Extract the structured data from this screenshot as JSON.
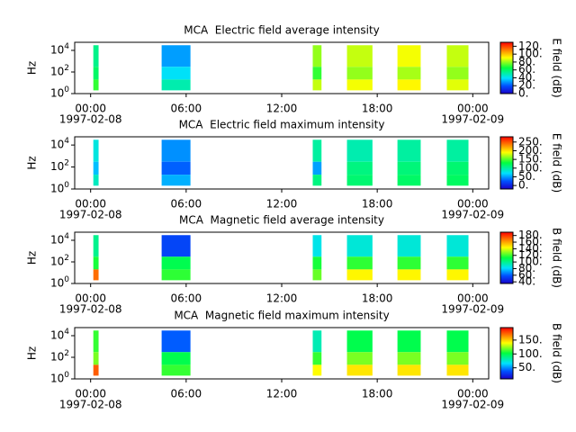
{
  "chart_data": [
    {
      "type": "heatmap",
      "title": "MCA  Electric field average intensity",
      "ylabel": "Hz",
      "colorbar_label": "E field (dB)",
      "xlim": [
        -1,
        25
      ],
      "xticks": [
        {
          "value": 0,
          "label": "00:00"
        },
        {
          "value": 6,
          "label": "06:00"
        },
        {
          "value": 12,
          "label": "12:00"
        },
        {
          "value": 18,
          "label": "18:00"
        },
        {
          "value": 24,
          "label": "00:00"
        }
      ],
      "x_dates": [
        {
          "value": 0,
          "label": "1997-02-08"
        },
        {
          "value": 24,
          "label": "1997-02-09"
        }
      ],
      "log_y": true,
      "ylim": [
        1,
        56000
      ],
      "yticks": [
        {
          "value": 1,
          "label": "10^0"
        },
        {
          "value": 100,
          "label": "10^2"
        },
        {
          "value": 10000,
          "label": "10^4"
        }
      ],
      "clim": [
        0,
        130
      ],
      "cticks": [
        {
          "value": 0,
          "label": "0."
        },
        {
          "value": 20,
          "label": "20."
        },
        {
          "value": 40,
          "label": "40."
        },
        {
          "value": 60,
          "label": "60."
        },
        {
          "value": 80,
          "label": "80."
        },
        {
          "value": 100,
          "label": "100."
        },
        {
          "value": 120,
          "label": "120."
        }
      ],
      "blocks": [
        {
          "t": [
            0.17,
            0.5
          ],
          "bands": [
            {
              "f": [
                300,
                30000
              ],
              "value": 55
            },
            {
              "f": [
                20,
                300
              ],
              "value": 60
            },
            {
              "f": [
                2,
                20
              ],
              "value": 70
            }
          ]
        },
        {
          "t": [
            4.46,
            6.27
          ],
          "bands": [
            {
              "f": [
                300,
                30000
              ],
              "value": 30
            },
            {
              "f": [
                20,
                300
              ],
              "value": 40
            },
            {
              "f": [
                2,
                20
              ],
              "value": 50
            }
          ]
        },
        {
          "t": [
            13.95,
            14.5
          ],
          "bands": [
            {
              "f": [
                300,
                30000
              ],
              "value": 80
            },
            {
              "f": [
                20,
                300
              ],
              "value": 70
            },
            {
              "f": [
                2,
                20
              ],
              "value": 85
            }
          ]
        },
        {
          "t": [
            16.1,
            17.7
          ],
          "bands": [
            {
              "f": [
                300,
                30000
              ],
              "value": 85
            },
            {
              "f": [
                20,
                300
              ],
              "value": 80
            },
            {
              "f": [
                2,
                20
              ],
              "value": 90
            }
          ]
        },
        {
          "t": [
            19.27,
            20.73
          ],
          "bands": [
            {
              "f": [
                300,
                30000
              ],
              "value": 90
            },
            {
              "f": [
                20,
                300
              ],
              "value": 82
            },
            {
              "f": [
                2,
                20
              ],
              "value": 92
            }
          ]
        },
        {
          "t": [
            22.37,
            23.73
          ],
          "bands": [
            {
              "f": [
                300,
                30000
              ],
              "value": 85
            },
            {
              "f": [
                20,
                300
              ],
              "value": 80
            },
            {
              "f": [
                2,
                20
              ],
              "value": 88
            }
          ]
        }
      ]
    },
    {
      "type": "heatmap",
      "title": "MCA  Electric field maximum intensity",
      "ylabel": "Hz",
      "colorbar_label": "E field (dB)",
      "xlim": [
        -1,
        25
      ],
      "xticks": [
        {
          "value": 0,
          "label": "00:00"
        },
        {
          "value": 6,
          "label": "06:00"
        },
        {
          "value": 12,
          "label": "12:00"
        },
        {
          "value": 18,
          "label": "18:00"
        },
        {
          "value": 24,
          "label": "00:00"
        }
      ],
      "x_dates": [
        {
          "value": 0,
          "label": "1997-02-08"
        },
        {
          "value": 24,
          "label": "1997-02-09"
        }
      ],
      "log_y": true,
      "ylim": [
        1,
        56000
      ],
      "yticks": [
        {
          "value": 1,
          "label": "10^0"
        },
        {
          "value": 100,
          "label": "10^2"
        },
        {
          "value": 10000,
          "label": "10^4"
        }
      ],
      "clim": [
        -20,
        280
      ],
      "cticks": [
        {
          "value": 0,
          "label": "0."
        },
        {
          "value": 50,
          "label": "50."
        },
        {
          "value": 100,
          "label": "100."
        },
        {
          "value": 150,
          "label": "150."
        },
        {
          "value": 200,
          "label": "200."
        },
        {
          "value": 250,
          "label": "250."
        }
      ],
      "blocks": [
        {
          "t": [
            0.17,
            0.5
          ],
          "bands": [
            {
              "f": [
                300,
                30000
              ],
              "value": 80
            },
            {
              "f": [
                20,
                300
              ],
              "value": 60
            },
            {
              "f": [
                2,
                20
              ],
              "value": 90
            }
          ]
        },
        {
          "t": [
            4.46,
            6.27
          ],
          "bands": [
            {
              "f": [
                300,
                30000
              ],
              "value": 45
            },
            {
              "f": [
                20,
                300
              ],
              "value": 30
            },
            {
              "f": [
                2,
                20
              ],
              "value": 55
            }
          ]
        },
        {
          "t": [
            13.95,
            14.5
          ],
          "bands": [
            {
              "f": [
                300,
                30000
              ],
              "value": 100
            },
            {
              "f": [
                20,
                300
              ],
              "value": 50
            },
            {
              "f": [
                2,
                20
              ],
              "value": 110
            }
          ]
        },
        {
          "t": [
            16.1,
            17.7
          ],
          "bands": [
            {
              "f": [
                300,
                30000
              ],
              "value": 95
            },
            {
              "f": [
                20,
                300
              ],
              "value": 110
            },
            {
              "f": [
                2,
                20
              ],
              "value": 115
            }
          ]
        },
        {
          "t": [
            19.27,
            20.73
          ],
          "bands": [
            {
              "f": [
                300,
                30000
              ],
              "value": 100
            },
            {
              "f": [
                20,
                300
              ],
              "value": 112
            },
            {
              "f": [
                2,
                20
              ],
              "value": 118
            }
          ]
        },
        {
          "t": [
            22.37,
            23.73
          ],
          "bands": [
            {
              "f": [
                300,
                30000
              ],
              "value": 100
            },
            {
              "f": [
                20,
                300
              ],
              "value": 115
            },
            {
              "f": [
                2,
                20
              ],
              "value": 120
            }
          ]
        }
      ]
    },
    {
      "type": "heatmap",
      "title": "MCA  Magnetic field average intensity",
      "ylabel": "Hz",
      "colorbar_label": "B field (dB)",
      "xlim": [
        -1,
        25
      ],
      "xticks": [
        {
          "value": 0,
          "label": "00:00"
        },
        {
          "value": 6,
          "label": "06:00"
        },
        {
          "value": 12,
          "label": "12:00"
        },
        {
          "value": 18,
          "label": "18:00"
        },
        {
          "value": 24,
          "label": "00:00"
        }
      ],
      "x_dates": [
        {
          "value": 0,
          "label": "1997-02-08"
        },
        {
          "value": 24,
          "label": "1997-02-09"
        }
      ],
      "log_y": true,
      "ylim": [
        1,
        56000
      ],
      "yticks": [
        {
          "value": 1,
          "label": "10^0"
        },
        {
          "value": 100,
          "label": "10^2"
        },
        {
          "value": 10000,
          "label": "10^4"
        }
      ],
      "clim": [
        35,
        190
      ],
      "cticks": [
        {
          "value": 40,
          "label": "40."
        },
        {
          "value": 60,
          "label": "60."
        },
        {
          "value": 80,
          "label": "80."
        },
        {
          "value": 100,
          "label": "100."
        },
        {
          "value": 120,
          "label": "120."
        },
        {
          "value": 140,
          "label": "140."
        },
        {
          "value": 160,
          "label": "160."
        },
        {
          "value": 180,
          "label": "180."
        }
      ],
      "blocks": [
        {
          "t": [
            0.17,
            0.5
          ],
          "bands": [
            {
              "f": [
                300,
                30000
              ],
              "value": 100
            },
            {
              "f": [
                20,
                300
              ],
              "value": 115
            },
            {
              "f": [
                2,
                20
              ],
              "value": 170
            }
          ]
        },
        {
          "t": [
            4.46,
            6.27
          ],
          "bands": [
            {
              "f": [
                300,
                30000
              ],
              "value": 55
            },
            {
              "f": [
                20,
                300
              ],
              "value": 110
            },
            {
              "f": [
                2,
                20
              ],
              "value": 118
            }
          ]
        },
        {
          "t": [
            13.95,
            14.5
          ],
          "bands": [
            {
              "f": [
                300,
                30000
              ],
              "value": 85
            },
            {
              "f": [
                20,
                300
              ],
              "value": 115
            },
            {
              "f": [
                2,
                20
              ],
              "value": 125
            }
          ]
        },
        {
          "t": [
            16.1,
            17.7
          ],
          "bands": [
            {
              "f": [
                300,
                30000
              ],
              "value": 88
            },
            {
              "f": [
                20,
                300
              ],
              "value": 118
            },
            {
              "f": [
                2,
                20
              ],
              "value": 145
            }
          ]
        },
        {
          "t": [
            19.27,
            20.73
          ],
          "bands": [
            {
              "f": [
                300,
                30000
              ],
              "value": 88
            },
            {
              "f": [
                20,
                300
              ],
              "value": 118
            },
            {
              "f": [
                2,
                20
              ],
              "value": 145
            }
          ]
        },
        {
          "t": [
            22.37,
            23.73
          ],
          "bands": [
            {
              "f": [
                300,
                30000
              ],
              "value": 88
            },
            {
              "f": [
                20,
                300
              ],
              "value": 118
            },
            {
              "f": [
                2,
                20
              ],
              "value": 145
            }
          ]
        }
      ]
    },
    {
      "type": "heatmap",
      "title": "MCA  Magnetic field maximum intensity",
      "ylabel": "Hz",
      "colorbar_label": "B field (dB)",
      "xlim": [
        -1,
        25
      ],
      "xticks": [
        {
          "value": 0,
          "label": "00:00"
        },
        {
          "value": 6,
          "label": "06:00"
        },
        {
          "value": 12,
          "label": "12:00"
        },
        {
          "value": 18,
          "label": "18:00"
        },
        {
          "value": 24,
          "label": "00:00"
        }
      ],
      "x_dates": [
        {
          "value": 0,
          "label": "1997-02-08"
        },
        {
          "value": 24,
          "label": "1997-02-09"
        }
      ],
      "log_y": true,
      "ylim": [
        1,
        56000
      ],
      "yticks": [
        {
          "value": 1,
          "label": "10^0"
        },
        {
          "value": 100,
          "label": "10^2"
        },
        {
          "value": 10000,
          "label": "10^4"
        }
      ],
      "clim": [
        10,
        195
      ],
      "cticks": [
        {
          "value": 50,
          "label": "50."
        },
        {
          "value": 100,
          "label": "100."
        },
        {
          "value": 150,
          "label": "150."
        }
      ],
      "blocks": [
        {
          "t": [
            0.17,
            0.5
          ],
          "bands": [
            {
              "f": [
                300,
                30000
              ],
              "value": 110
            },
            {
              "f": [
                20,
                300
              ],
              "value": 120
            },
            {
              "f": [
                2,
                20
              ],
              "value": 175
            }
          ]
        },
        {
          "t": [
            4.46,
            6.27
          ],
          "bands": [
            {
              "f": [
                300,
                30000
              ],
              "value": 40
            },
            {
              "f": [
                20,
                300
              ],
              "value": 100
            },
            {
              "f": [
                2,
                20
              ],
              "value": 110
            }
          ]
        },
        {
          "t": [
            13.95,
            14.5
          ],
          "bands": [
            {
              "f": [
                300,
                30000
              ],
              "value": 80
            },
            {
              "f": [
                20,
                300
              ],
              "value": 110
            },
            {
              "f": [
                2,
                20
              ],
              "value": 140
            }
          ]
        },
        {
          "t": [
            16.1,
            17.7
          ],
          "bands": [
            {
              "f": [
                300,
                30000
              ],
              "value": 100
            },
            {
              "f": [
                20,
                300
              ],
              "value": 120
            },
            {
              "f": [
                2,
                20
              ],
              "value": 145
            }
          ]
        },
        {
          "t": [
            19.27,
            20.73
          ],
          "bands": [
            {
              "f": [
                300,
                30000
              ],
              "value": 100
            },
            {
              "f": [
                20,
                300
              ],
              "value": 120
            },
            {
              "f": [
                2,
                20
              ],
              "value": 145
            }
          ]
        },
        {
          "t": [
            22.37,
            23.73
          ],
          "bands": [
            {
              "f": [
                300,
                30000
              ],
              "value": 100
            },
            {
              "f": [
                20,
                300
              ],
              "value": 120
            },
            {
              "f": [
                2,
                20
              ],
              "value": 145
            }
          ]
        }
      ]
    }
  ]
}
